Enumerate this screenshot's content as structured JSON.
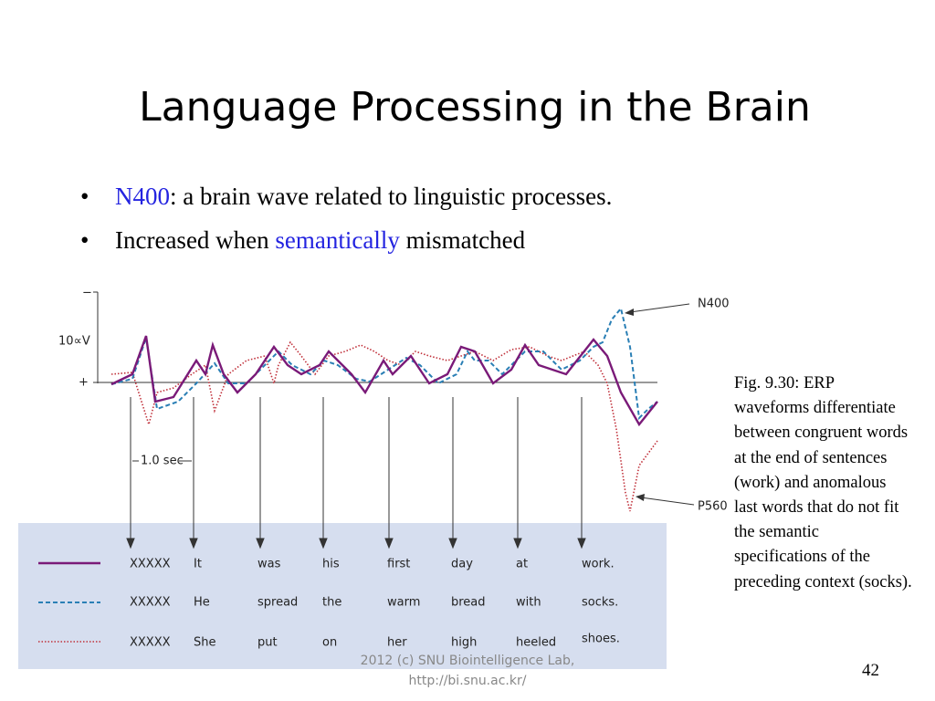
{
  "title": "Language Processing in the Brain",
  "bullets": [
    {
      "parts": [
        {
          "text": "N400",
          "highlight": true
        },
        {
          "text": ": a brain wave related to linguistic processes.",
          "highlight": false
        }
      ]
    },
    {
      "parts": [
        {
          "text": "Increased when ",
          "highlight": false
        },
        {
          "text": "semantically",
          "highlight": true
        },
        {
          "text": " mismatched",
          "highlight": false
        }
      ]
    }
  ],
  "figure": {
    "axis_labels": {
      "minus": "−",
      "scale": "10∝V",
      "plus": "+",
      "interval": "1.0 sec"
    },
    "annotations": {
      "n400": "N400",
      "p560": "P560"
    },
    "sentences": [
      [
        "XXXXX",
        "It",
        "was",
        "his",
        "first",
        "day",
        "at",
        "work."
      ],
      [
        "XXXXX",
        "He",
        "spread",
        "the",
        "warm",
        "bread",
        "with",
        "socks."
      ],
      [
        "XXXXX",
        "She",
        "put",
        "on",
        "her",
        "high",
        "heeled",
        "shoes."
      ]
    ]
  },
  "caption": "Fig. 9.30: ERP waveforms differentiate between congruent words at the end of sentences (work) and anomalous last words that do not fit the semantic specifications of the preceding context (socks).",
  "footer": "2012 (c) SNU Biointelligence Lab, http://bi.snu.ac.kr/",
  "page_number": "42"
}
